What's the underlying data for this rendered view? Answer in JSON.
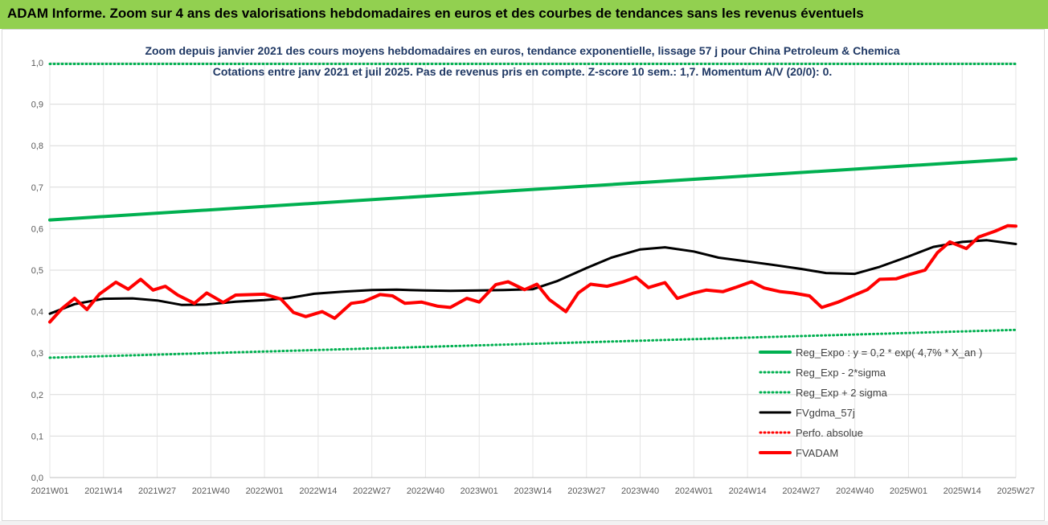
{
  "banner": {
    "title": "ADAM Informe. Zoom sur 4 ans des valorisations hebdomadaires en euros et des courbes de tendances sans les revenus éventuels",
    "background": "#92d050"
  },
  "chart_data": {
    "type": "line",
    "title": "Zoom depuis janvier 2021 des cours moyens hebdomadaires en euros, tendance exponentielle, lissage 57 j pour China Petroleum & Chemica",
    "subtitle": "Cotations entre janv 2021 et juil 2025. Pas de revenus pris en compte. Z-score 10 sem.: 1,7. Momentum A/V (20/0): 0.",
    "xlabel": "",
    "ylabel": "",
    "ylim": [
      0,
      1
    ],
    "grid": true,
    "legend_position": "right",
    "x_tick_labels": [
      "2021W01",
      "2021W14",
      "2021W27",
      "2021W40",
      "2022W01",
      "2022W14",
      "2022W27",
      "2022W40",
      "2023W01",
      "2023W14",
      "2023W27",
      "2023W40",
      "2024W01",
      "2024W14",
      "2024W27",
      "2024W40",
      "2025W01",
      "2025W14",
      "2025W27"
    ],
    "y_tick_labels": [
      "0,0",
      "0,1",
      "0,2",
      "0,3",
      "0,4",
      "0,5",
      "0,6",
      "0,7",
      "0,8",
      "0,9",
      "1,0"
    ],
    "x_index_range": [
      0,
      234
    ],
    "series": [
      {
        "name": "Reg_Expo : y = 0,2 * exp( 4,7% *  X_an )",
        "style": "solid-thick",
        "color": "#00b050",
        "points": [
          [
            0,
            0.621
          ],
          [
            234,
            0.768
          ]
        ]
      },
      {
        "name": "Reg_Exp - 2*sigma",
        "style": "dotted",
        "color": "#00b050",
        "points": [
          [
            0,
            0.289
          ],
          [
            234,
            0.356
          ]
        ]
      },
      {
        "name": "Reg_Exp + 2 sigma",
        "style": "dotted",
        "color": "#00b050",
        "points": [
          [
            0,
            0.997
          ],
          [
            234,
            0.997
          ]
        ]
      },
      {
        "name": "FVgdma_57j",
        "style": "solid",
        "color": "#000000",
        "points": [
          [
            0,
            0.395
          ],
          [
            6,
            0.418
          ],
          [
            13,
            0.431
          ],
          [
            20,
            0.432
          ],
          [
            26,
            0.427
          ],
          [
            32,
            0.416
          ],
          [
            38,
            0.417
          ],
          [
            45,
            0.424
          ],
          [
            52,
            0.428
          ],
          [
            58,
            0.433
          ],
          [
            64,
            0.443
          ],
          [
            71,
            0.448
          ],
          [
            78,
            0.452
          ],
          [
            84,
            0.453
          ],
          [
            91,
            0.451
          ],
          [
            97,
            0.45
          ],
          [
            104,
            0.451
          ],
          [
            110,
            0.452
          ],
          [
            117,
            0.454
          ],
          [
            123,
            0.474
          ],
          [
            130,
            0.505
          ],
          [
            136,
            0.53
          ],
          [
            143,
            0.55
          ],
          [
            149,
            0.555
          ],
          [
            156,
            0.545
          ],
          [
            162,
            0.53
          ],
          [
            169,
            0.521
          ],
          [
            175,
            0.513
          ],
          [
            182,
            0.503
          ],
          [
            188,
            0.493
          ],
          [
            195,
            0.491
          ],
          [
            201,
            0.508
          ],
          [
            208,
            0.533
          ],
          [
            214,
            0.556
          ],
          [
            221,
            0.568
          ],
          [
            227,
            0.572
          ],
          [
            234,
            0.563
          ]
        ]
      },
      {
        "name": "Perfo. absolue",
        "style": "dotted",
        "color": "#ff0000",
        "points": []
      },
      {
        "name": "FVADAM",
        "style": "solid-thick",
        "color": "#ff0000",
        "points": [
          [
            0,
            0.375
          ],
          [
            3,
            0.408
          ],
          [
            6,
            0.432
          ],
          [
            9,
            0.405
          ],
          [
            12,
            0.442
          ],
          [
            16,
            0.471
          ],
          [
            19,
            0.454
          ],
          [
            22,
            0.478
          ],
          [
            25,
            0.452
          ],
          [
            28,
            0.461
          ],
          [
            31,
            0.44
          ],
          [
            35,
            0.42
          ],
          [
            38,
            0.445
          ],
          [
            42,
            0.422
          ],
          [
            45,
            0.44
          ],
          [
            49,
            0.441
          ],
          [
            52,
            0.442
          ],
          [
            56,
            0.43
          ],
          [
            59,
            0.398
          ],
          [
            62,
            0.388
          ],
          [
            66,
            0.4
          ],
          [
            69,
            0.384
          ],
          [
            73,
            0.42
          ],
          [
            76,
            0.424
          ],
          [
            80,
            0.441
          ],
          [
            83,
            0.438
          ],
          [
            86,
            0.42
          ],
          [
            90,
            0.423
          ],
          [
            94,
            0.413
          ],
          [
            97,
            0.41
          ],
          [
            101,
            0.432
          ],
          [
            104,
            0.423
          ],
          [
            108,
            0.465
          ],
          [
            111,
            0.472
          ],
          [
            115,
            0.453
          ],
          [
            118,
            0.466
          ],
          [
            121,
            0.429
          ],
          [
            125,
            0.4
          ],
          [
            128,
            0.445
          ],
          [
            131,
            0.466
          ],
          [
            135,
            0.461
          ],
          [
            139,
            0.472
          ],
          [
            142,
            0.483
          ],
          [
            145,
            0.458
          ],
          [
            149,
            0.47
          ],
          [
            152,
            0.432
          ],
          [
            156,
            0.445
          ],
          [
            159,
            0.452
          ],
          [
            163,
            0.448
          ],
          [
            166,
            0.458
          ],
          [
            170,
            0.472
          ],
          [
            173,
            0.457
          ],
          [
            177,
            0.448
          ],
          [
            180,
            0.445
          ],
          [
            184,
            0.438
          ],
          [
            187,
            0.41
          ],
          [
            191,
            0.423
          ],
          [
            194,
            0.436
          ],
          [
            198,
            0.453
          ],
          [
            201,
            0.478
          ],
          [
            205,
            0.479
          ],
          [
            208,
            0.489
          ],
          [
            212,
            0.5
          ],
          [
            215,
            0.542
          ],
          [
            218,
            0.568
          ],
          [
            222,
            0.552
          ],
          [
            225,
            0.58
          ],
          [
            229,
            0.594
          ],
          [
            232,
            0.607
          ],
          [
            234,
            0.606
          ]
        ]
      }
    ]
  }
}
